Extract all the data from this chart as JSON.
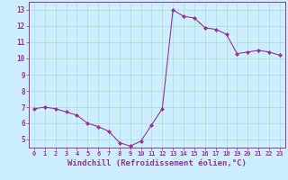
{
  "x": [
    0,
    1,
    2,
    3,
    4,
    5,
    6,
    7,
    8,
    9,
    10,
    11,
    12,
    13,
    14,
    15,
    16,
    17,
    18,
    19,
    20,
    21,
    22,
    23
  ],
  "y": [
    6.9,
    7.0,
    6.9,
    6.7,
    6.5,
    6.0,
    5.8,
    5.5,
    4.8,
    4.6,
    4.9,
    5.9,
    6.9,
    13.0,
    12.6,
    12.5,
    11.9,
    11.8,
    11.5,
    10.3,
    10.4,
    10.5,
    10.4,
    10.2
  ],
  "line_color": "#993399",
  "marker": "D",
  "markersize": 2.0,
  "linewidth": 0.8,
  "xlabel": "Windchill (Refroidissement éolien,°C)",
  "xlabel_fontsize": 6.5,
  "bg_color": "#cceeff",
  "grid_color": "#aaddcc",
  "tick_color": "#993399",
  "ylim": [
    4.5,
    13.5
  ],
  "xlim": [
    -0.5,
    23.5
  ],
  "yticks": [
    5,
    6,
    7,
    8,
    9,
    10,
    11,
    12,
    13
  ],
  "xticks": [
    0,
    1,
    2,
    3,
    4,
    5,
    6,
    7,
    8,
    9,
    10,
    11,
    12,
    13,
    14,
    15,
    16,
    17,
    18,
    19,
    20,
    21,
    22,
    23
  ]
}
